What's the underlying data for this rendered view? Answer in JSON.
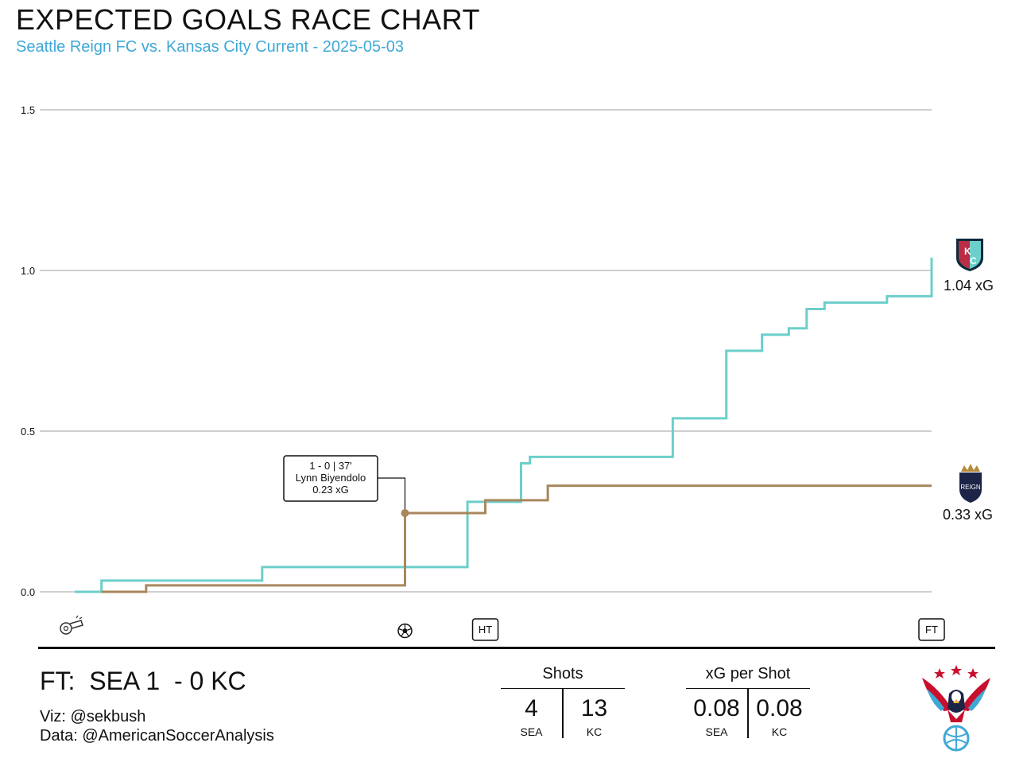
{
  "header": {
    "title": "EXPECTED GOALS RACE CHART",
    "subtitle": "Seattle Reign FC vs. Kansas City Current - 2025-05-03"
  },
  "colors": {
    "kc": "#6ccfcb",
    "sea": "#a8875d",
    "subtitle": "#3fa9d6",
    "grid": "#cfcfcf"
  },
  "chart_data": {
    "type": "line",
    "step": true,
    "xlim": [
      0,
      96
    ],
    "ylim": [
      0,
      1.5
    ],
    "yticks": [
      "0.0",
      "0.5",
      "1.0",
      "1.5"
    ],
    "ytick_values": [
      0,
      0.5,
      1.0,
      1.5
    ],
    "grid": true,
    "series": [
      {
        "name": "KC",
        "color": "#6ccfcb",
        "x": [
          0,
          3,
          21,
          44,
          50,
          51,
          67,
          73,
          77,
          80,
          82,
          84,
          91,
          96,
          96
        ],
        "y": [
          0,
          0.035,
          0.077,
          0.28,
          0.4,
          0.42,
          0.54,
          0.75,
          0.8,
          0.82,
          0.88,
          0.9,
          0.92,
          0.92,
          1.04
        ]
      },
      {
        "name": "SEA",
        "color": "#a8875d",
        "x": [
          3,
          8,
          37,
          46,
          53,
          96
        ],
        "y": [
          0,
          0.02,
          0.245,
          0.285,
          0.33,
          0.33
        ]
      }
    ],
    "annotations": [
      {
        "x": 37,
        "y": 0.245,
        "lines": [
          "1 - 0  |  37'",
          "Lynn Biyendolo",
          "0.23 xG"
        ]
      }
    ],
    "events": [
      {
        "minute": 0,
        "label": "",
        "icon": "whistle-icon"
      },
      {
        "minute": 37,
        "label": "",
        "icon": "soccer-ball-icon"
      },
      {
        "minute": 46,
        "label": "HT"
      },
      {
        "minute": 96,
        "label": "FT"
      }
    ],
    "final_labels": {
      "kc": "1.04 xG",
      "sea": "0.33 xG"
    }
  },
  "footer": {
    "score": "FT:  SEA 1  - 0 KC",
    "viz": "Viz: @sekbush",
    "data": "Data: @AmericanSoccerAnalysis",
    "shots": {
      "title": "Shots",
      "sea_value": "4",
      "kc_value": "13",
      "sea_label": "SEA",
      "kc_label": "KC"
    },
    "xg_per_shot": {
      "title": "xG per Shot",
      "sea_value": "0.08",
      "kc_value": "0.08",
      "sea_label": "SEA",
      "kc_label": "KC"
    }
  },
  "logos": {
    "kc_badge": "kc-current-crest-icon",
    "sea_badge": "reign-crest-icon",
    "asa_logo": "american-soccer-analysis-eagle-icon",
    "sea_badge_text": "REIGN"
  }
}
